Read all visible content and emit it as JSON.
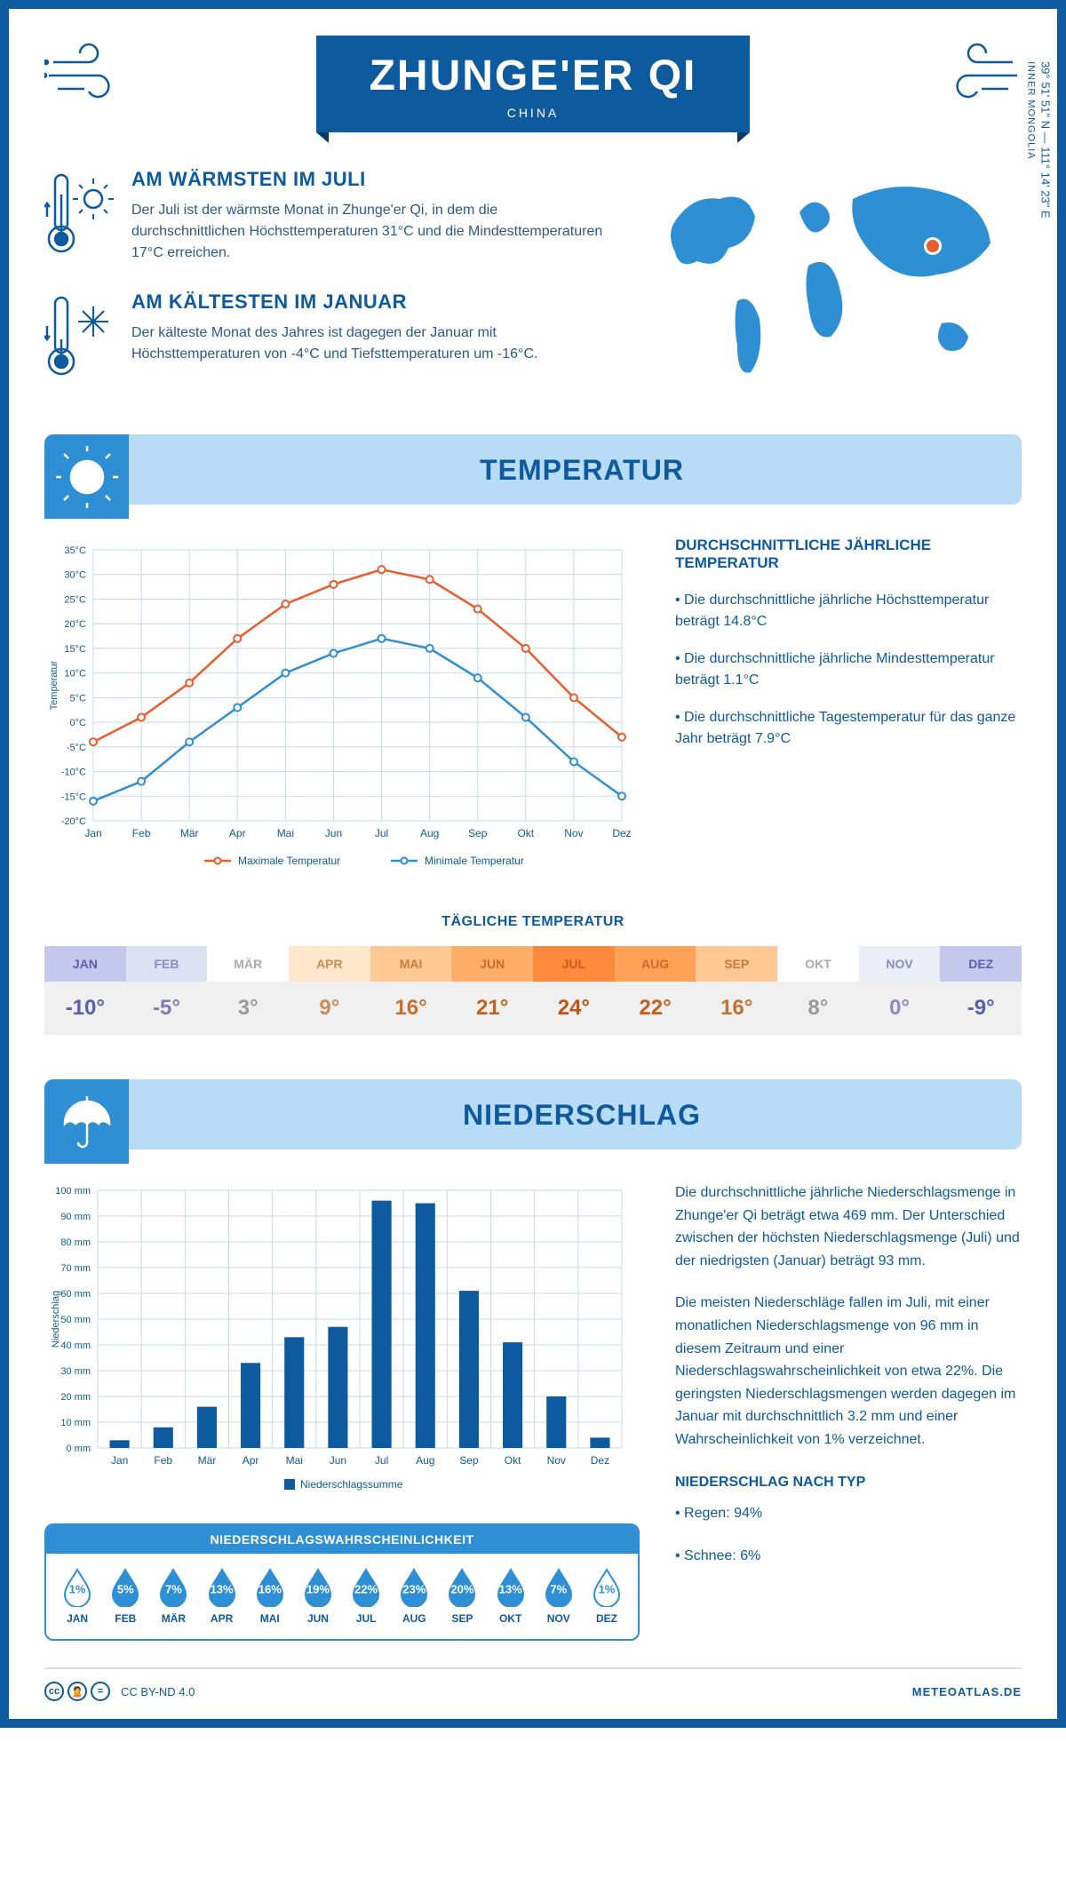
{
  "header": {
    "title": "ZHUNGE'ER QI",
    "subtitle": "CHINA"
  },
  "coords": {
    "lat": "39° 51' 51\" N",
    "lon": "111° 14' 23\" E",
    "region": "INNER MONGOLIA"
  },
  "warmest": {
    "title": "AM WÄRMSTEN IM JULI",
    "text": "Der Juli ist der wärmste Monat in Zhunge'er Qi, in dem die durchschnittlichen Höchsttemperaturen 31°C und die Mindesttemperaturen 17°C erreichen."
  },
  "coldest": {
    "title": "AM KÄLTESTEN IM JANUAR",
    "text": "Der kälteste Monat des Jahres ist dagegen der Januar mit Höchsttemperaturen von -4°C und Tiefsttemperaturen um -16°C."
  },
  "sections": {
    "temp": "TEMPERATUR",
    "precip": "NIEDERSCHLAG"
  },
  "temp_chart": {
    "months": [
      "Jan",
      "Feb",
      "Mär",
      "Apr",
      "Mai",
      "Jun",
      "Jul",
      "Aug",
      "Sep",
      "Okt",
      "Nov",
      "Dez"
    ],
    "max": [
      -4,
      1,
      8,
      17,
      24,
      28,
      31,
      29,
      23,
      15,
      5,
      -3
    ],
    "min": [
      -16,
      -12,
      -4,
      3,
      10,
      14,
      17,
      15,
      9,
      1,
      -8,
      -15
    ],
    "ymin": -20,
    "ymax": 35,
    "ystep": 5,
    "max_color": "#e85d2c",
    "min_color": "#2e8fd5",
    "grid_color": "#c8d8ea",
    "ylabel": "Temperatur",
    "legend_max": "Maximale Temperatur",
    "legend_min": "Minimale Temperatur"
  },
  "temp_info": {
    "title": "DURCHSCHNITTLICHE JÄHRLICHE TEMPERATUR",
    "bullets": [
      "• Die durchschnittliche jährliche Höchsttemperatur beträgt 14.8°C",
      "• Die durchschnittliche jährliche Mindesttemperatur beträgt 1.1°C",
      "• Die durchschnittliche Tagestemperatur für das ganze Jahr beträgt 7.9°C"
    ]
  },
  "daily": {
    "title": "TÄGLICHE TEMPERATUR",
    "months": [
      "JAN",
      "FEB",
      "MÄR",
      "APR",
      "MAI",
      "JUN",
      "JUL",
      "AUG",
      "SEP",
      "OKT",
      "NOV",
      "DEZ"
    ],
    "values": [
      "-10°",
      "-5°",
      "3°",
      "9°",
      "16°",
      "21°",
      "24°",
      "22°",
      "16°",
      "8°",
      "0°",
      "-9°"
    ],
    "head_colors": [
      "#c5c8ed",
      "#dde1f4",
      "#fff",
      "#ffe7cc",
      "#ffc995",
      "#ffae6a",
      "#ff8a3d",
      "#ffa257",
      "#ffc995",
      "#fff",
      "#eceef7",
      "#c5c8ed"
    ],
    "head_text": [
      "#5a5fb0",
      "#8a8cc0",
      "#aaa",
      "#cc8c55",
      "#cc7a3c",
      "#cc6a28",
      "#d15a18",
      "#cc6a28",
      "#cc7a3c",
      "#aaa",
      "#8a8cc0",
      "#5a5fb0"
    ],
    "val_text": [
      "#5a5fb0",
      "#7a7db8",
      "#999",
      "#cc8c55",
      "#c77030",
      "#c46320",
      "#c4520f",
      "#c45e1a",
      "#c77030",
      "#999",
      "#8a8cc0",
      "#5a5fb0"
    ]
  },
  "precip_chart": {
    "months": [
      "Jan",
      "Feb",
      "Mär",
      "Apr",
      "Mai",
      "Jun",
      "Jul",
      "Aug",
      "Sep",
      "Okt",
      "Nov",
      "Dez"
    ],
    "values": [
      3,
      8,
      16,
      33,
      43,
      47,
      96,
      95,
      61,
      41,
      20,
      4
    ],
    "ymax": 100,
    "ystep": 10,
    "bar_color": "#0d5a9e",
    "grid_color": "#c8d8ea",
    "ylabel": "Niederschlag",
    "legend": "Niederschlagssumme"
  },
  "precip_info": {
    "p1": "Die durchschnittliche jährliche Niederschlagsmenge in Zhunge'er Qi beträgt etwa 469 mm. Der Unterschied zwischen der höchsten Niederschlagsmenge (Juli) und der niedrigsten (Januar) beträgt 93 mm.",
    "p2": "Die meisten Niederschläge fallen im Juli, mit einer monatlichen Niederschlagsmenge von 96 mm in diesem Zeitraum und einer Niederschlagswahrscheinlichkeit von etwa 22%. Die geringsten Niederschlagsmengen werden dagegen im Januar mit durchschnittlich 3.2 mm und einer Wahrscheinlichkeit von 1% verzeichnet.",
    "type_title": "NIEDERSCHLAG NACH TYP",
    "rain": "• Regen: 94%",
    "snow": "• Schnee: 6%"
  },
  "prob": {
    "title": "NIEDERSCHLAGSWAHRSCHEINLICHKEIT",
    "months": [
      "JAN",
      "FEB",
      "MÄR",
      "APR",
      "MAI",
      "JUN",
      "JUL",
      "AUG",
      "SEP",
      "OKT",
      "NOV",
      "DEZ"
    ],
    "pct": [
      "1%",
      "5%",
      "7%",
      "13%",
      "16%",
      "19%",
      "22%",
      "23%",
      "20%",
      "13%",
      "7%",
      "1%"
    ],
    "filled": [
      false,
      true,
      true,
      true,
      true,
      true,
      true,
      true,
      true,
      true,
      true,
      false
    ]
  },
  "footer": {
    "license": "CC BY-ND 4.0",
    "site": "METEOATLAS.DE"
  }
}
